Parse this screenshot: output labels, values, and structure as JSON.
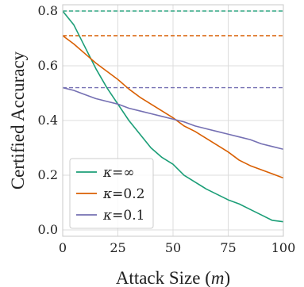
{
  "chart_data": {
    "type": "line",
    "title": "",
    "xlabel": "Attack Size (m)",
    "xlabel_parts": {
      "text": "Attack Size (",
      "var": "m",
      "close": ")"
    },
    "ylabel": "Certified Accuracy",
    "xlim": [
      0,
      100
    ],
    "ylim": [
      0,
      0.8
    ],
    "xticks": [
      0,
      25,
      50,
      75,
      100
    ],
    "yticks": [
      0.0,
      0.2,
      0.4,
      0.6,
      0.8
    ],
    "xtick_labels": [
      "0",
      "25",
      "50",
      "75",
      "100"
    ],
    "ytick_labels": [
      "0.0",
      "0.2",
      "0.4",
      "0.6",
      "0.8"
    ],
    "grid": true,
    "legend_position": "bottom-left",
    "series": [
      {
        "name": "κ=∞",
        "label_var": "κ",
        "label_value": "=∞",
        "color": "#1b9e77",
        "x": [
          0,
          5,
          10,
          15,
          20,
          25,
          30,
          35,
          40,
          45,
          50,
          55,
          60,
          65,
          70,
          75,
          80,
          85,
          90,
          95,
          100
        ],
        "y": [
          0.8,
          0.75,
          0.67,
          0.59,
          0.52,
          0.46,
          0.4,
          0.35,
          0.3,
          0.265,
          0.24,
          0.2,
          0.175,
          0.15,
          0.13,
          0.11,
          0.095,
          0.075,
          0.055,
          0.035,
          0.03
        ],
        "baseline": 0.8
      },
      {
        "name": "κ=0.2",
        "label_var": "κ",
        "label_value": "=0.2",
        "color": "#d95f02",
        "x": [
          0,
          5,
          10,
          15,
          20,
          25,
          30,
          35,
          40,
          45,
          50,
          55,
          60,
          65,
          70,
          75,
          80,
          85,
          90,
          95,
          100
        ],
        "y": [
          0.71,
          0.68,
          0.645,
          0.61,
          0.58,
          0.55,
          0.515,
          0.485,
          0.46,
          0.435,
          0.41,
          0.38,
          0.36,
          0.335,
          0.31,
          0.285,
          0.255,
          0.235,
          0.22,
          0.205,
          0.19
        ],
        "baseline": 0.71
      },
      {
        "name": "κ=0.1",
        "label_var": "κ",
        "label_value": "=0.1",
        "color": "#7570b3",
        "x": [
          0,
          5,
          10,
          15,
          20,
          25,
          30,
          35,
          40,
          45,
          50,
          55,
          60,
          65,
          70,
          75,
          80,
          85,
          90,
          95,
          100
        ],
        "y": [
          0.52,
          0.51,
          0.495,
          0.48,
          0.47,
          0.46,
          0.445,
          0.435,
          0.425,
          0.415,
          0.405,
          0.395,
          0.38,
          0.37,
          0.36,
          0.35,
          0.34,
          0.33,
          0.315,
          0.305,
          0.295
        ],
        "baseline": 0.52
      }
    ]
  },
  "colors": {
    "grid": "#dcdcdc",
    "axes_edge": "#c8c8c8",
    "legend_edge": "#cccccc"
  }
}
